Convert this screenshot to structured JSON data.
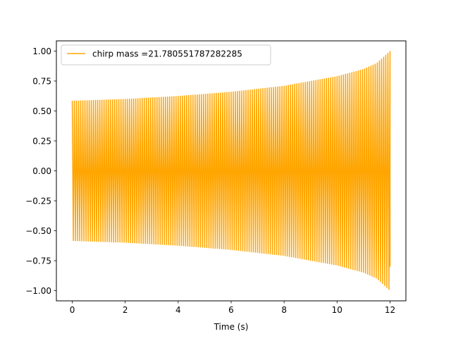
{
  "chart_data": {
    "type": "line",
    "title": "",
    "xlabel": "Time (s)",
    "ylabel": "",
    "xlim": [
      -0.6,
      12.6
    ],
    "ylim": [
      -1.085,
      1.085
    ],
    "x_ticks": [
      0,
      2,
      4,
      6,
      8,
      10,
      12
    ],
    "x_tick_labels": [
      "0",
      "2",
      "4",
      "6",
      "8",
      "10",
      "12"
    ],
    "y_ticks": [
      -1.0,
      -0.75,
      -0.5,
      -0.25,
      0.0,
      0.25,
      0.5,
      0.75,
      1.0
    ],
    "y_tick_labels": [
      "−1.00",
      "−0.75",
      "−0.50",
      "−0.25",
      "0.00",
      "0.25",
      "0.50",
      "0.75",
      "1.00"
    ],
    "grid": false,
    "legend_position": "top-left",
    "series": [
      {
        "name": "chirp mass =21.780551787282285",
        "color": "#ffa500",
        "x_range": [
          0,
          12.0
        ],
        "envelope": {
          "x": [
            0,
            2,
            4,
            6,
            8,
            10,
            11,
            11.5,
            12.0
          ],
          "amplitude": [
            0.585,
            0.6,
            0.625,
            0.66,
            0.71,
            0.79,
            0.85,
            0.9,
            1.0
          ]
        },
        "oscillation_cycles": 150,
        "final_value": -0.8
      }
    ]
  }
}
